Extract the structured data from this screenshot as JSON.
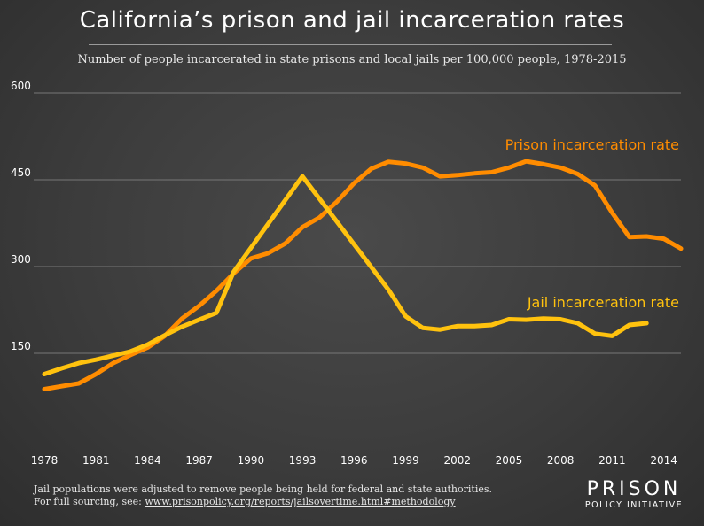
{
  "title": "California’s prison and jail incarceration rates",
  "subtitle": "Number of people incarcerated in state prisons and local jails per 100,000 people, 1978-2015",
  "footnote": {
    "line1": "Jail populations were adjusted to remove people being held for federal and state authorities.",
    "line2_prefix": "For full sourcing, see: ",
    "link": "www.prisonpolicy.org/reports/jailsovertime.html#methodology"
  },
  "logo": {
    "line1": "PRISON",
    "line2": "POLICY INITIATIVE"
  },
  "colors": {
    "prison": "#ff8c00",
    "jail": "#ffc20e",
    "grid": "#777777",
    "text": "#ffffff"
  },
  "chart_data": {
    "type": "line",
    "title": "California’s prison and jail incarceration rates",
    "subtitle": "Number of people incarcerated in state prisons and local jails per 100,000 people, 1978-2015",
    "xlabel": "",
    "ylabel": "",
    "xlim": [
      1978,
      2015
    ],
    "ylim": [
      0,
      600
    ],
    "yticks": [
      150,
      300,
      450,
      600
    ],
    "xticks": [
      1978,
      1981,
      1984,
      1987,
      1990,
      1993,
      1996,
      1999,
      2002,
      2005,
      2008,
      2011,
      2014
    ],
    "grid": true,
    "series": [
      {
        "name": "Prison incarceration rate",
        "x": [
          1978,
          1979,
          1980,
          1981,
          1982,
          1983,
          1984,
          1985,
          1986,
          1987,
          1988,
          1989,
          1990,
          1991,
          1992,
          1993,
          1994,
          1995,
          1996,
          1997,
          1998,
          1999,
          2000,
          2001,
          2002,
          2003,
          2004,
          2005,
          2006,
          2007,
          2008,
          2009,
          2010,
          2011,
          2012,
          2013,
          2014,
          2015
        ],
        "values": [
          88,
          93,
          98,
          114,
          133,
          147,
          160,
          180,
          210,
          232,
          258,
          288,
          314,
          323,
          340,
          368,
          385,
          412,
          444,
          469,
          481,
          478,
          471,
          456,
          458,
          461,
          463,
          471,
          482,
          477,
          471,
          460,
          440,
          393,
          351,
          352,
          348,
          331
        ]
      },
      {
        "name": "Jail incarceration rate",
        "x": [
          1978,
          1979,
          1980,
          1981,
          1982,
          1983,
          1984,
          1985,
          1986,
          1987,
          1988,
          1989,
          1993,
          1998,
          1999,
          2000,
          2001,
          2002,
          2003,
          2004,
          2005,
          2006,
          2007,
          2008,
          2009,
          2010,
          2011,
          2012,
          2013
        ],
        "values": [
          114,
          124,
          133,
          139,
          146,
          153,
          165,
          181,
          196,
          208,
          220,
          291,
          456,
          260,
          214,
          194,
          191,
          197,
          197,
          199,
          209,
          208,
          210,
          209,
          202,
          184,
          180,
          199,
          202
        ]
      }
    ]
  }
}
